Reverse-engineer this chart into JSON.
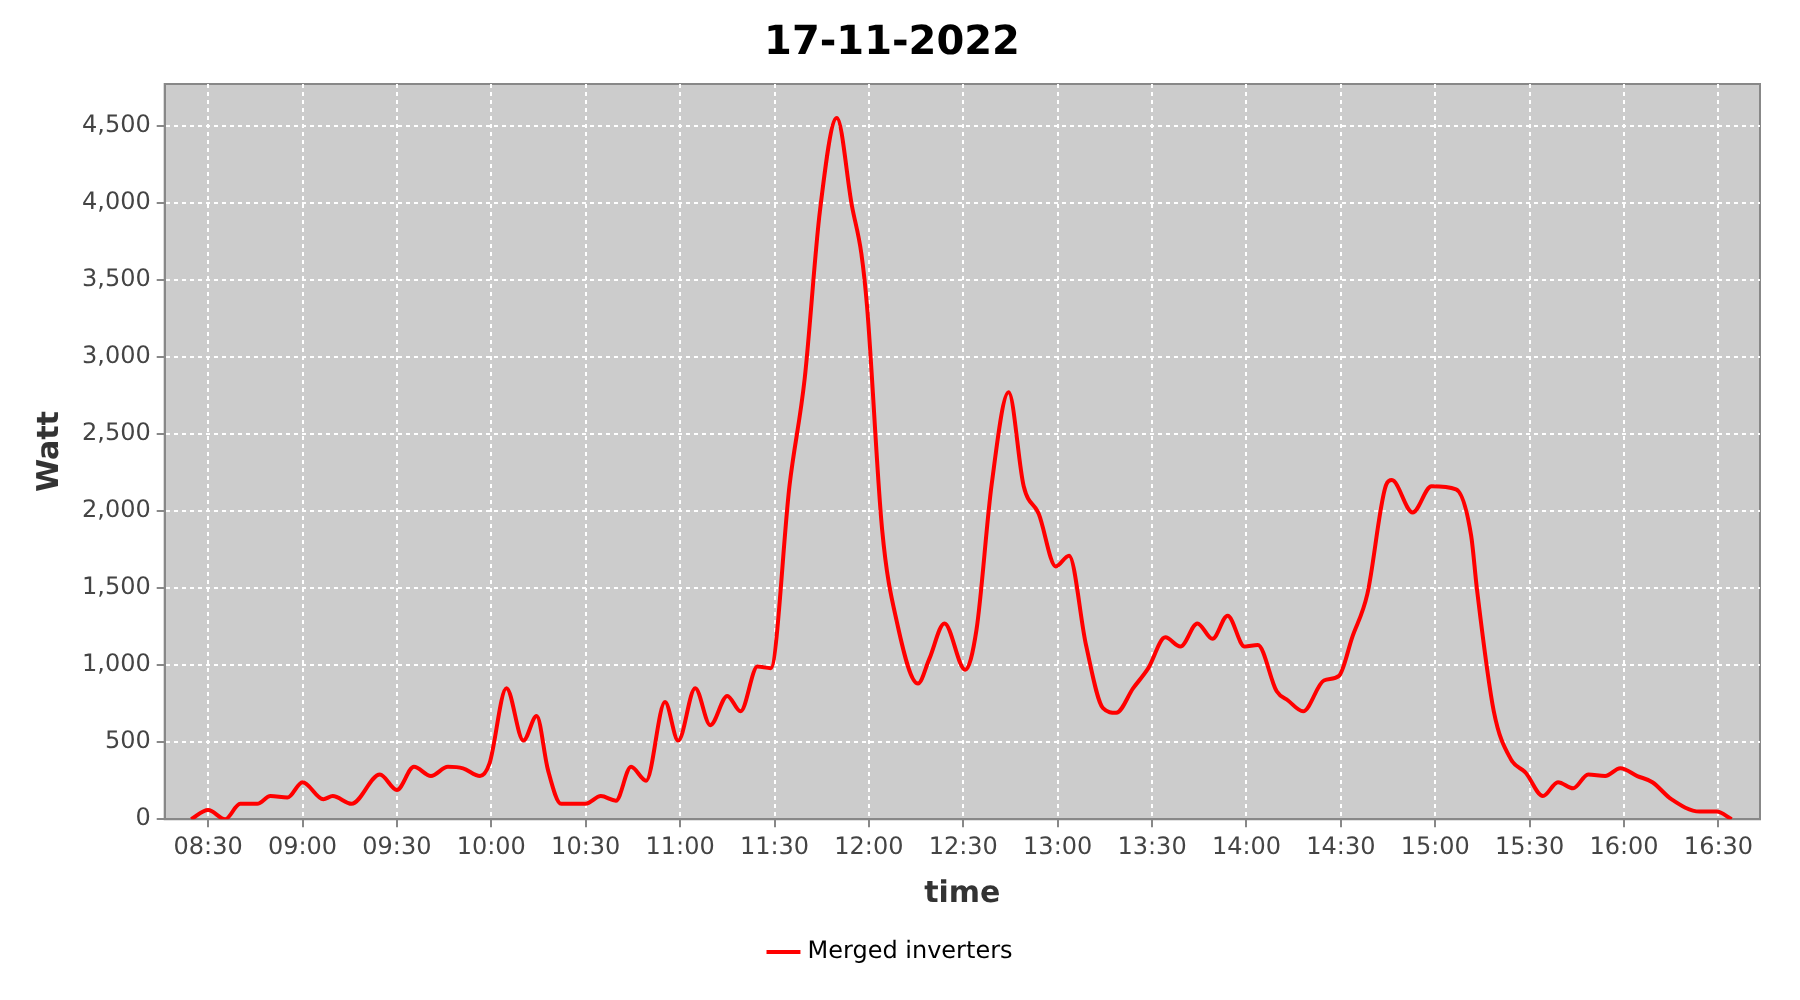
{
  "chart_data": {
    "type": "line",
    "title": "17-11-2022",
    "xlabel": "time",
    "ylabel": "Watt",
    "legend": "bottom",
    "grid": true,
    "marker": "none",
    "line_style": "solid",
    "xlim": [
      8.27,
      16.72
    ],
    "xticks": [
      {
        "value": 8.5,
        "label": "08:30"
      },
      {
        "value": 9,
        "label": "09:00"
      },
      {
        "value": 9.5,
        "label": "09:30"
      },
      {
        "value": 10,
        "label": "10:00"
      },
      {
        "value": 10.5,
        "label": "10:30"
      },
      {
        "value": 11,
        "label": "11:00"
      },
      {
        "value": 11.5,
        "label": "11:30"
      },
      {
        "value": 12,
        "label": "12:00"
      },
      {
        "value": 12.5,
        "label": "12:30"
      },
      {
        "value": 13,
        "label": "13:00"
      },
      {
        "value": 13.5,
        "label": "13:30"
      },
      {
        "value": 14,
        "label": "14:00"
      },
      {
        "value": 14.5,
        "label": "14:30"
      },
      {
        "value": 15,
        "label": "15:00"
      },
      {
        "value": 15.5,
        "label": "15:30"
      },
      {
        "value": 16,
        "label": "16:00"
      },
      {
        "value": 16.5,
        "label": "16:30"
      }
    ],
    "ylim": [
      0,
      4770
    ],
    "yticks": [
      0,
      500,
      {
        "value": 1000,
        "label": "1,000"
      },
      {
        "value": 1500,
        "label": "1,500"
      },
      {
        "value": 2000,
        "label": "2,000"
      },
      {
        "value": 2500,
        "label": "2,500"
      },
      {
        "value": 3000,
        "label": "3,000"
      },
      {
        "value": 3500,
        "label": "3,500"
      },
      {
        "value": 4000,
        "label": "4,000"
      },
      {
        "value": 4500,
        "label": "4,500"
      }
    ],
    "series": [
      {
        "name": "Merged inverters",
        "color": "#ff0000",
        "x": [
          8.41,
          8.5,
          8.59,
          8.67,
          8.76,
          8.83,
          8.92,
          9.0,
          9.11,
          9.16,
          9.26,
          9.41,
          9.5,
          9.59,
          9.68,
          9.77,
          9.85,
          9.94,
          9.99,
          10.08,
          10.17,
          10.24,
          10.3,
          10.37,
          10.5,
          10.58,
          10.66,
          10.74,
          10.82,
          10.92,
          10.99,
          11.08,
          11.16,
          11.25,
          11.32,
          11.41,
          11.48,
          11.58,
          11.66,
          11.74,
          11.83,
          11.91,
          11.96,
          11.99,
          12.07,
          12.15,
          12.26,
          12.32,
          12.4,
          12.51,
          12.57,
          12.65,
          12.74,
          12.82,
          12.9,
          12.99,
          13.06,
          13.15,
          13.24,
          13.31,
          13.4,
          13.48,
          13.57,
          13.65,
          13.74,
          13.82,
          13.9,
          13.99,
          14.06,
          14.16,
          14.22,
          14.3,
          14.41,
          14.49,
          14.56,
          14.64,
          14.74,
          14.77,
          14.88,
          14.98,
          15.11,
          15.19,
          15.22,
          15.31,
          15.4,
          15.48,
          15.57,
          15.65,
          15.73,
          15.81,
          15.9,
          15.98,
          16.07,
          16.15,
          16.25,
          16.4,
          16.49,
          16.57
        ],
        "values": [
          0,
          60,
          0,
          100,
          100,
          150,
          140,
          240,
          130,
          150,
          100,
          290,
          190,
          340,
          280,
          340,
          330,
          280,
          360,
          850,
          510,
          670,
          320,
          100,
          100,
          150,
          120,
          340,
          250,
          760,
          510,
          850,
          610,
          800,
          700,
          990,
          980,
          2170,
          2860,
          3940,
          4550,
          3980,
          3670,
          3330,
          1880,
          1270,
          880,
          1040,
          1270,
          970,
          1230,
          2170,
          2770,
          2160,
          1980,
          1640,
          1710,
          1130,
          720,
          690,
          850,
          980,
          1180,
          1120,
          1270,
          1170,
          1320,
          1120,
          1130,
          830,
          770,
          700,
          900,
          930,
          1180,
          1460,
          2170,
          2200,
          1990,
          2160,
          2140,
          1840,
          1500,
          700,
          390,
          300,
          150,
          240,
          200,
          290,
          280,
          330,
          280,
          240,
          130,
          50,
          50,
          0
        ]
      }
    ]
  }
}
